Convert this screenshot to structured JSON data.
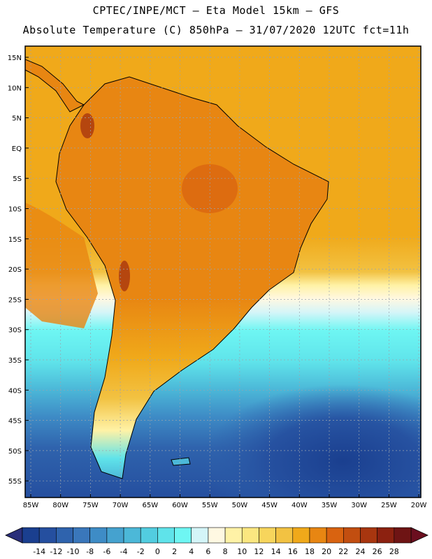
{
  "header": {
    "line1": "CPTEC/INPE/MCT –  Eta Model 15km – GFS",
    "line2": "Absolute Temperature (C) 850hPa – 31/07/2020 12UTC fct=11h"
  },
  "axes": {
    "lat_labels": [
      "15N",
      "10N",
      "5N",
      "EQ",
      "5S",
      "10S",
      "15S",
      "20S",
      "25S",
      "30S",
      "35S",
      "40S",
      "45S",
      "50S",
      "55S"
    ],
    "lon_labels": [
      "85W",
      "80W",
      "75W",
      "70W",
      "65W",
      "60W",
      "55W",
      "50W",
      "45W",
      "40W",
      "35W",
      "30W",
      "25W",
      "20W"
    ]
  },
  "colorbar": {
    "labels": [
      "-14",
      "-12",
      "-10",
      "-8",
      "-6",
      "-4",
      "-2",
      "0",
      "2",
      "4",
      "6",
      "8",
      "10",
      "12",
      "14",
      "16",
      "18",
      "20",
      "22",
      "24",
      "26",
      "28"
    ],
    "colors": [
      "#1a3f8f",
      "#254f9f",
      "#2f63ad",
      "#3a77bb",
      "#3e8cc6",
      "#45a2cf",
      "#4cb8d8",
      "#52cde0",
      "#5fe3ea",
      "#6ef6f3",
      "#d4f5f8",
      "#fff8e2",
      "#fff2a6",
      "#fbe780",
      "#f7d55c",
      "#f2c242",
      "#f0a91a",
      "#e88612",
      "#d96310",
      "#c24e10",
      "#a8360f",
      "#8c2110",
      "#6e1414"
    ],
    "under_color": "#2a2f7a",
    "over_color": "#6b0e1f"
  },
  "map": {
    "ocean_north_color": "#f0a91a",
    "land_color": "#e88612",
    "warm_core_color": "#d96310",
    "cold_core_color": "#1a3f8f"
  }
}
